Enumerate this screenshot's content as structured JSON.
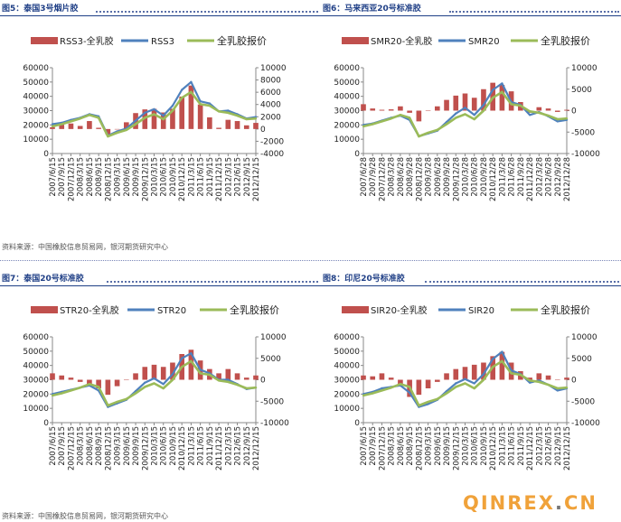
{
  "header_top": {
    "left": "图5：泰国3号烟片胶",
    "right": "图6：马来西亚20号标准胶"
  },
  "header_mid": {
    "left": "图7：泰国20号标准胶",
    "right": "图8：印尼20号标准胶"
  },
  "source_text": "资料来源：中国橡胶信息贸易网，银河期货研究中心",
  "watermark": {
    "main": "QINREX",
    "dot": ".",
    "tld": "CN"
  },
  "colors": {
    "spread": "#c0504d",
    "price": "#4f81bd",
    "domestic": "#9bbb59",
    "header": "#1f3f86"
  },
  "chart_data": [
    {
      "type": "area",
      "legend": [
        "RSS3-全乳胶",
        "RSS3",
        "全乳胶报价"
      ],
      "ylim_left": [
        0,
        60000
      ],
      "yticks_left": [
        "0",
        "10000",
        "20000",
        "30000",
        "40000",
        "50000",
        "60000"
      ],
      "ylim_right": [
        -4000,
        10000
      ],
      "yticks_right": [
        "-4000",
        "-2000",
        "0",
        "2000",
        "4000",
        "6000",
        "8000",
        "10000"
      ],
      "x": [
        "2007/6/15",
        "2007/9/15",
        "2007/12/15",
        "2008/3/15",
        "2008/6/15",
        "2008/9/15",
        "2008/12/15",
        "2009/3/15",
        "2009/6/15",
        "2009/9/15",
        "2009/12/15",
        "2010/3/15",
        "2010/6/15",
        "2010/9/15",
        "2010/12/15",
        "2011/3/15",
        "2011/6/15",
        "2011/9/15",
        "2011/12/15",
        "2012/3/15",
        "2012/6/15",
        "2012/9/15",
        "2012/12/15"
      ],
      "series": [
        {
          "name": "RSS3-全乳胶",
          "axis": "right",
          "values": [
            300,
            700,
            900,
            500,
            1300,
            200,
            -900,
            0,
            1100,
            2600,
            3200,
            3300,
            2700,
            3300,
            5300,
            7100,
            4000,
            1900,
            200,
            1500,
            1300,
            600,
            1000
          ]
        },
        {
          "name": "RSS3",
          "axis": "left",
          "values": [
            20500,
            21500,
            23500,
            25000,
            27500,
            26000,
            12500,
            15500,
            17500,
            23000,
            28500,
            31000,
            26500,
            33500,
            44500,
            50000,
            36500,
            35000,
            29500,
            30000,
            27500,
            24500,
            25500
          ]
        },
        {
          "name": "全乳胶报价",
          "axis": "left",
          "values": [
            19000,
            20500,
            22500,
            24500,
            27000,
            25000,
            12000,
            14500,
            16500,
            20500,
            25000,
            27500,
            24000,
            30000,
            39000,
            43000,
            34500,
            33500,
            29500,
            28500,
            26500,
            24000,
            24500
          ]
        }
      ]
    },
    {
      "type": "area",
      "legend": [
        "SMR20-全乳胶",
        "SMR20",
        "全乳胶报价"
      ],
      "ylim_left": [
        0,
        60000
      ],
      "yticks_left": [
        "0",
        "10000",
        "20000",
        "30000",
        "40000",
        "50000",
        "60000"
      ],
      "ylim_right": [
        -10000,
        10000
      ],
      "yticks_right": [
        "-10000",
        "-5000",
        "0",
        "5000",
        "10000"
      ],
      "x": [
        "2007/6/28",
        "2007/9/28",
        "2007/12/28",
        "2008/3/28",
        "2008/6/28",
        "2008/9/28",
        "2008/12/28",
        "2009/3/28",
        "2009/6/28",
        "2009/9/28",
        "2009/12/28",
        "2010/3/28",
        "2010/6/28",
        "2010/9/28",
        "2010/12/28",
        "2011/3/28",
        "2011/6/28",
        "2011/9/28",
        "2011/12/28",
        "2012/3/28",
        "2012/6/28",
        "2012/9/28",
        "2012/12/28"
      ],
      "series": [
        {
          "name": "SMR20-全乳胶",
          "axis": "right",
          "values": [
            1500,
            500,
            200,
            300,
            1000,
            -500,
            -2500,
            0,
            1000,
            2500,
            3500,
            4000,
            3000,
            5000,
            6500,
            6000,
            4500,
            2000,
            -500,
            800,
            500,
            -300,
            200
          ]
        },
        {
          "name": "SMR20",
          "axis": "left",
          "values": [
            20000,
            21000,
            23000,
            25000,
            26500,
            23500,
            12000,
            14000,
            16000,
            22000,
            28000,
            32000,
            27000,
            34000,
            44500,
            49000,
            36000,
            34000,
            27000,
            29000,
            26000,
            22500,
            23500
          ]
        },
        {
          "name": "全乳胶报价",
          "axis": "left",
          "values": [
            19000,
            20500,
            22500,
            24500,
            27000,
            25000,
            12000,
            14500,
            16500,
            20500,
            25000,
            27500,
            24000,
            30000,
            39000,
            43000,
            34500,
            33500,
            29500,
            28500,
            26500,
            24000,
            24500
          ]
        }
      ]
    },
    {
      "type": "area",
      "legend": [
        "STR20-全乳胶",
        "STR20",
        "全乳胶报价"
      ],
      "ylim_left": [
        0,
        60000
      ],
      "yticks_left": [
        "0",
        "10000",
        "20000",
        "30000",
        "40000",
        "50000",
        "60000"
      ],
      "ylim_right": [
        -10000,
        10000
      ],
      "yticks_right": [
        "-10000",
        "-5000",
        "0",
        "5000",
        "10000"
      ],
      "x": [
        "2007/6/15",
        "2007/9/15",
        "2007/12/15",
        "2008/3/15",
        "2008/6/15",
        "2008/9/15",
        "2008/12/15",
        "2009/3/15",
        "2009/6/15",
        "2009/9/15",
        "2009/12/15",
        "2010/3/15",
        "2010/6/15",
        "2010/9/15",
        "2010/12/15",
        "2011/3/15",
        "2011/6/15",
        "2011/9/15",
        "2011/12/15",
        "2012/3/15",
        "2012/6/15",
        "2012/9/15",
        "2012/12/15"
      ],
      "series": [
        {
          "name": "STR20-全乳胶",
          "axis": "right",
          "values": [
            1500,
            1000,
            500,
            -500,
            -1000,
            -2000,
            -3500,
            -1500,
            0,
            1500,
            3000,
            3500,
            3000,
            4000,
            6000,
            7000,
            4500,
            2500,
            1500,
            2500,
            1500,
            500,
            1000
          ]
        },
        {
          "name": "STR20",
          "axis": "left",
          "values": [
            20000,
            21500,
            23000,
            24500,
            26000,
            22500,
            11000,
            13500,
            16000,
            22000,
            28000,
            31000,
            27000,
            34000,
            45000,
            48500,
            37000,
            34500,
            30000,
            30000,
            27000,
            23500,
            24500
          ]
        },
        {
          "name": "全乳胶报价",
          "axis": "left",
          "values": [
            19000,
            20500,
            22500,
            24500,
            27000,
            25000,
            12000,
            14500,
            16500,
            20500,
            25000,
            27500,
            24000,
            30000,
            39000,
            43000,
            34500,
            33500,
            29500,
            28500,
            26500,
            24000,
            24500
          ]
        }
      ]
    },
    {
      "type": "area",
      "legend": [
        "SIR20-全乳胶",
        "SIR20",
        "全乳胶报价"
      ],
      "ylim_left": [
        0,
        60000
      ],
      "yticks_left": [
        "0",
        "10000",
        "20000",
        "30000",
        "40000",
        "50000",
        "60000"
      ],
      "ylim_right": [
        -10000,
        10000
      ],
      "yticks_right": [
        "-10000",
        "-5000",
        "0",
        "5000",
        "10000"
      ],
      "x": [
        "2007/6/15",
        "2007/9/15",
        "2007/12/15",
        "2008/3/15",
        "2008/6/15",
        "2008/9/15",
        "2008/12/15",
        "2009/3/15",
        "2009/6/15",
        "2009/9/15",
        "2009/12/15",
        "2010/3/15",
        "2010/6/15",
        "2010/9/15",
        "2010/12/15",
        "2011/3/15",
        "2011/6/15",
        "2011/9/15",
        "2011/12/15",
        "2012/3/15",
        "2012/6/15",
        "2012/9/15",
        "2012/12/15"
      ],
      "series": [
        {
          "name": "SIR20-全乳胶",
          "axis": "right",
          "values": [
            1000,
            800,
            1500,
            500,
            -1000,
            -4000,
            -3500,
            -2000,
            -500,
            1500,
            2500,
            3000,
            3500,
            4000,
            5500,
            6500,
            4000,
            2000,
            500,
            1500,
            1000,
            0,
            500
          ]
        },
        {
          "name": "SIR20",
          "axis": "left",
          "values": [
            20000,
            21500,
            24000,
            25000,
            26000,
            21000,
            11000,
            13000,
            16000,
            22000,
            27500,
            30500,
            27500,
            34000,
            44500,
            49500,
            36500,
            34000,
            28000,
            29500,
            26500,
            22500,
            24000
          ]
        },
        {
          "name": "全乳胶报价",
          "axis": "left",
          "values": [
            19000,
            20500,
            22500,
            24500,
            27000,
            25000,
            12000,
            14500,
            16500,
            20500,
            25000,
            27500,
            24000,
            30000,
            39000,
            43000,
            34500,
            33500,
            29500,
            28500,
            26500,
            24000,
            24500
          ]
        }
      ]
    }
  ]
}
